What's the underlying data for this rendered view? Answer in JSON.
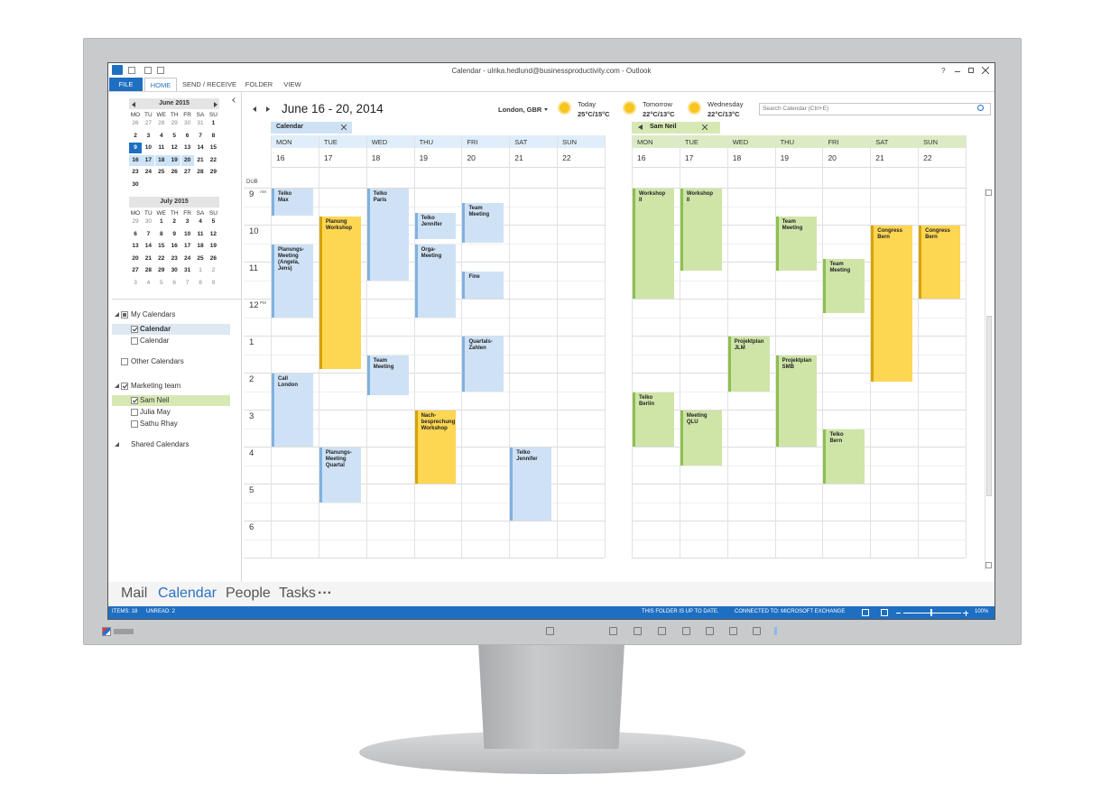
{
  "window": {
    "title": "Calendar - ulrika.hedlund@businessproductivity.com - Outlook",
    "help": "?",
    "tabs": [
      "FILE",
      "HOME",
      "SEND / RECEIVE",
      "FOLDER",
      "VIEW"
    ]
  },
  "mini_calendars": [
    {
      "title": "June 2015",
      "weekdays": [
        "MO",
        "TU",
        "WE",
        "TH",
        "FR",
        "SA",
        "SU"
      ],
      "weeks": [
        [
          26,
          27,
          28,
          29,
          30,
          31,
          1
        ],
        [
          2,
          3,
          4,
          5,
          6,
          7,
          8
        ],
        [
          9,
          10,
          11,
          12,
          13,
          14,
          15
        ],
        [
          16,
          17,
          18,
          19,
          20,
          21,
          22
        ],
        [
          23,
          24,
          25,
          26,
          27,
          28,
          29
        ],
        [
          30
        ]
      ]
    },
    {
      "title": "July 2015",
      "weekdays": [
        "MO",
        "TU",
        "WE",
        "TH",
        "FR",
        "SA",
        "SU"
      ],
      "weeks": [
        [
          29,
          30,
          1,
          2,
          3,
          4,
          5
        ],
        [
          6,
          7,
          8,
          9,
          10,
          11,
          12
        ],
        [
          13,
          14,
          15,
          16,
          17,
          18,
          19
        ],
        [
          20,
          21,
          22,
          23,
          24,
          25,
          26
        ],
        [
          27,
          28,
          29,
          30,
          31,
          1,
          2
        ],
        [
          3,
          4,
          5,
          6,
          7,
          8,
          9
        ]
      ]
    }
  ],
  "folders": [
    "My Calendars",
    "Calendar",
    "Calendar",
    "Other Calendars",
    "Marketing team",
    "Sam Neil",
    "Julia May",
    "Sathu Rhay",
    "Shared Calendars"
  ],
  "header": {
    "date_range": "June 16 - 20, 2014",
    "location": "London, GBR",
    "weather": [
      {
        "day": "Today",
        "temp": "25°C/15°C"
      },
      {
        "day": "Tomorrow",
        "temp": "22°C/13°C"
      },
      {
        "day": "Wednesday",
        "temp": "22°C/13°C"
      }
    ],
    "search": "Search Calendar (Ctrl+E)"
  },
  "time_scale": {
    "zone": "DUB",
    "hours": [
      9,
      10,
      11,
      12,
      1,
      2,
      3,
      4,
      5,
      6
    ],
    "am": "AM",
    "pm": "PM"
  },
  "panes": [
    {
      "tab": "Calendar",
      "days": [
        "MON",
        "TUE",
        "WED",
        "THU",
        "FRI",
        "SAT",
        "SUN"
      ],
      "dates": [
        16,
        17,
        18,
        19,
        20,
        21,
        22
      ],
      "events": [
        "Telko\nMax",
        "Planungs-\nMeeting\n(Angela, Jens)",
        "Call\nLondon",
        "Planung\nWorkshop",
        "Planungs-\nMeeting\nQuartal",
        "Telko\nParis",
        "Team Meeting",
        "Telko\nJennifer",
        "Orga-\nMeeting",
        "Nach-\nbesprechung\nWorkshop",
        "Team Meeting",
        "Fine",
        "Quartals-\nZahlen",
        "Telko\nJennifer"
      ]
    },
    {
      "tab": "Sam Neil",
      "days": [
        "MON",
        "TUE",
        "WED",
        "THU",
        "FRI",
        "SAT",
        "SUN"
      ],
      "dates": [
        16,
        17,
        18,
        19,
        20,
        21,
        22
      ],
      "events": [
        "Workshop\nII",
        "Workshop\nII",
        "Team\nMeeting",
        "Projektplan\nJLM",
        "Projektplan\nSMB",
        "Team\nMeeting",
        "Telko\nBerlin",
        "Meeting\nQLU",
        "Telko\nBern",
        "Congress\nBern",
        "Congress\nBern"
      ]
    }
  ],
  "navigation": [
    "Mail",
    "Calendar",
    "People",
    "Tasks",
    "···"
  ],
  "status": {
    "items": "ITEMS: 18",
    "unread": "UNREAD: 2",
    "sync": "THIS FOLDER IS UP TO DATE.",
    "connection": "CONNECTED TO: MICROSOFT EXCHANGE",
    "zoom": "100%"
  }
}
